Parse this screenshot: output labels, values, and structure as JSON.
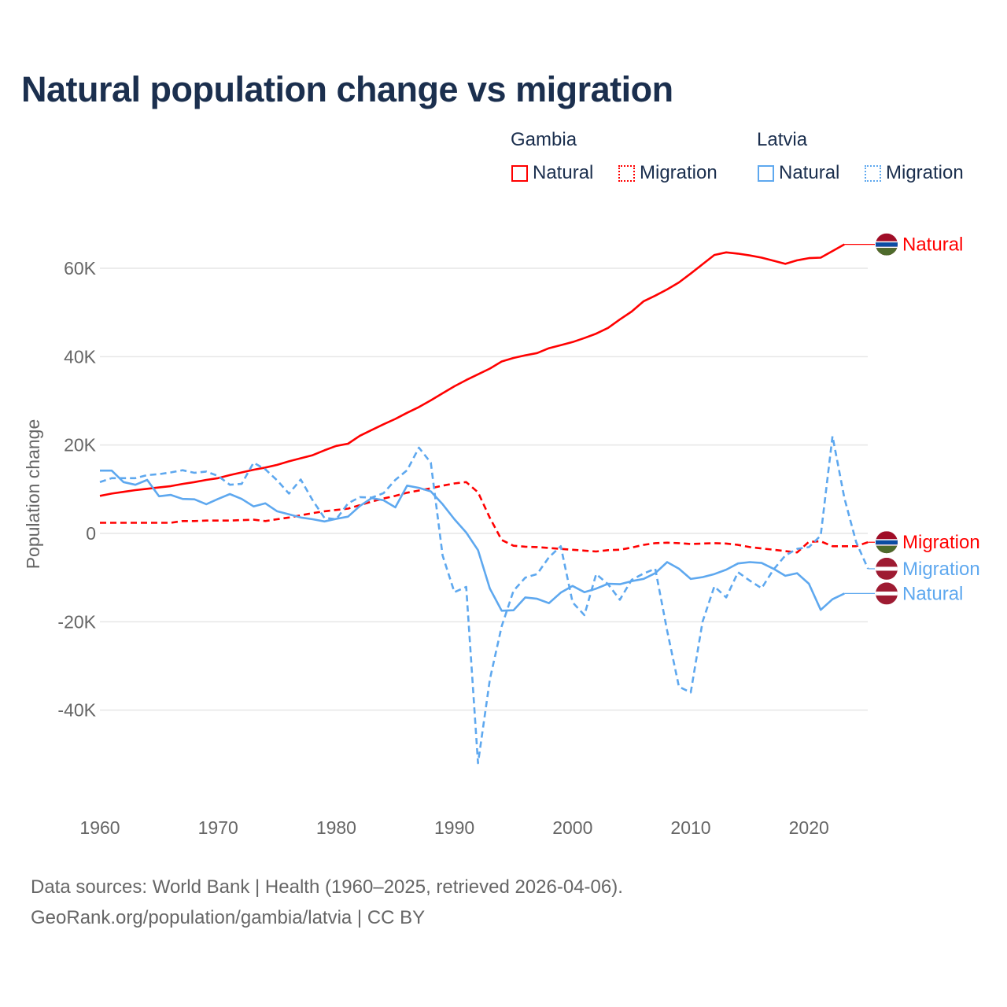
{
  "chart_data": {
    "type": "line",
    "title": "Natural population change vs migration",
    "xlabel": "",
    "ylabel": "Population change",
    "xlim": [
      1960,
      2025
    ],
    "ylim": [
      -52000,
      66000
    ],
    "x_ticks": [
      1960,
      1970,
      1980,
      1990,
      2000,
      2010,
      2020
    ],
    "x_tick_labels": [
      "1960",
      "1970",
      "1980",
      "1990",
      "2000",
      "2010",
      "2020"
    ],
    "y_ticks": [
      -40000,
      -20000,
      0,
      20000,
      40000,
      60000
    ],
    "y_tick_labels": [
      "-40K",
      "-20K",
      "0",
      "20K",
      "40K",
      "60K"
    ],
    "grid": true,
    "legend_placement": "top-right",
    "legend_groups": [
      {
        "country": "Gambia",
        "items": [
          "Natural",
          "Migration"
        ]
      },
      {
        "country": "Latvia",
        "items": [
          "Natural",
          "Migration"
        ]
      }
    ],
    "series": [
      {
        "name": "Gambia Natural",
        "country": "Gambia",
        "label": "Natural",
        "color": "#ff0000",
        "dash": false,
        "start_year": 1960,
        "values": [
          8500,
          9000,
          9400,
          9800,
          10100,
          10400,
          10700,
          11200,
          11600,
          12100,
          12500,
          13200,
          13800,
          14400,
          14900,
          15500,
          16300,
          17000,
          17700,
          18800,
          19800,
          20300,
          22100,
          23400,
          24700,
          25900,
          27300,
          28600,
          30100,
          31700,
          33300,
          34700,
          36000,
          37300,
          38900,
          39700,
          40300,
          40800,
          41900,
          42600,
          43300,
          44200,
          45200,
          46500,
          48400,
          50200,
          52500,
          53800,
          55200,
          56800,
          58800,
          60900,
          63000,
          63600,
          63300,
          62900,
          62400,
          61700,
          61000,
          61800,
          62300,
          62400,
          63900,
          65400
        ]
      },
      {
        "name": "Gambia Migration",
        "country": "Gambia",
        "label": "Migration",
        "color": "#ff0000",
        "dash": true,
        "start_year": 1960,
        "values": [
          2400,
          2400,
          2400,
          2400,
          2400,
          2400,
          2400,
          2800,
          2800,
          2900,
          2900,
          2900,
          3000,
          3100,
          2800,
          3200,
          3600,
          4100,
          4600,
          5000,
          5300,
          5600,
          6400,
          7200,
          7900,
          8500,
          9200,
          9700,
          10200,
          10800,
          11300,
          11600,
          9300,
          3500,
          -1500,
          -2800,
          -3000,
          -3100,
          -3300,
          -3500,
          -3700,
          -3900,
          -4100,
          -3800,
          -3700,
          -3200,
          -2600,
          -2200,
          -2100,
          -2200,
          -2400,
          -2300,
          -2200,
          -2300,
          -2600,
          -3100,
          -3400,
          -3700,
          -4000,
          -4300,
          -1900,
          -1800,
          -2900,
          -2900,
          -2900,
          -2000
        ]
      },
      {
        "name": "Latvia Natural",
        "country": "Latvia",
        "label": "Natural",
        "color": "#5ea8ef",
        "dash": false,
        "start_year": 1960,
        "values": [
          14200,
          14200,
          11600,
          11000,
          12100,
          8400,
          8700,
          7800,
          7700,
          6600,
          7800,
          8900,
          7800,
          6100,
          6800,
          5000,
          4300,
          3600,
          3200,
          2700,
          3300,
          3800,
          6200,
          8000,
          7500,
          5900,
          10800,
          10300,
          9500,
          6600,
          3200,
          200,
          -3800,
          -12500,
          -17500,
          -17400,
          -14500,
          -14800,
          -15800,
          -13400,
          -11900,
          -13300,
          -12500,
          -11400,
          -11500,
          -10800,
          -10300,
          -9000,
          -6500,
          -8000,
          -10300,
          -9900,
          -9200,
          -8200,
          -6800,
          -6500,
          -6700,
          -8000,
          -9600,
          -9000,
          -11400,
          -17300,
          -14900,
          -13600
        ]
      },
      {
        "name": "Latvia Migration",
        "country": "Latvia",
        "label": "Migration",
        "color": "#5ea8ef",
        "dash": true,
        "start_year": 1960,
        "values": [
          11600,
          12500,
          12500,
          12500,
          13200,
          13400,
          13800,
          14300,
          13700,
          14000,
          13000,
          11000,
          11200,
          16000,
          14500,
          12000,
          9000,
          12200,
          7500,
          3500,
          3200,
          6800,
          8200,
          8100,
          9100,
          12100,
          14300,
          19400,
          16000,
          -5000,
          -13300,
          -12100,
          -52000,
          -33000,
          -21000,
          -13000,
          -10000,
          -9200,
          -5400,
          -2900,
          -15600,
          -18500,
          -9200,
          -11500,
          -15000,
          -10500,
          -9100,
          -8000,
          -22000,
          -34700,
          -36000,
          -20000,
          -12000,
          -14500,
          -8800,
          -10700,
          -12400,
          -8200,
          -5000,
          -3500,
          -3100,
          -500,
          22000,
          8000,
          -2000,
          -8000
        ]
      }
    ],
    "end_labels": [
      {
        "series": "Gambia Natural",
        "text": "Natural",
        "flag": "gambia-flag"
      },
      {
        "series": "Gambia Migration",
        "text": "Migration",
        "flag": "gambia-flag"
      },
      {
        "series": "Latvia Migration",
        "text": "Migration",
        "flag": "latvia-flag"
      },
      {
        "series": "Latvia Natural",
        "text": "Natural",
        "flag": "latvia-flag"
      }
    ]
  },
  "legend": {
    "gambia": "Gambia",
    "latvia": "Latvia",
    "natural": "Natural",
    "migration": "Migration"
  },
  "colors": {
    "gambia": "#ff0000",
    "latvia": "#5ea8ef",
    "title": "#1b2f4e"
  },
  "footer": {
    "line1": "Data sources: World Bank | Health (1960–2025, retrieved 2026-04-06).",
    "line2": "GeoRank.org/population/gambia/latvia | CC BY"
  }
}
